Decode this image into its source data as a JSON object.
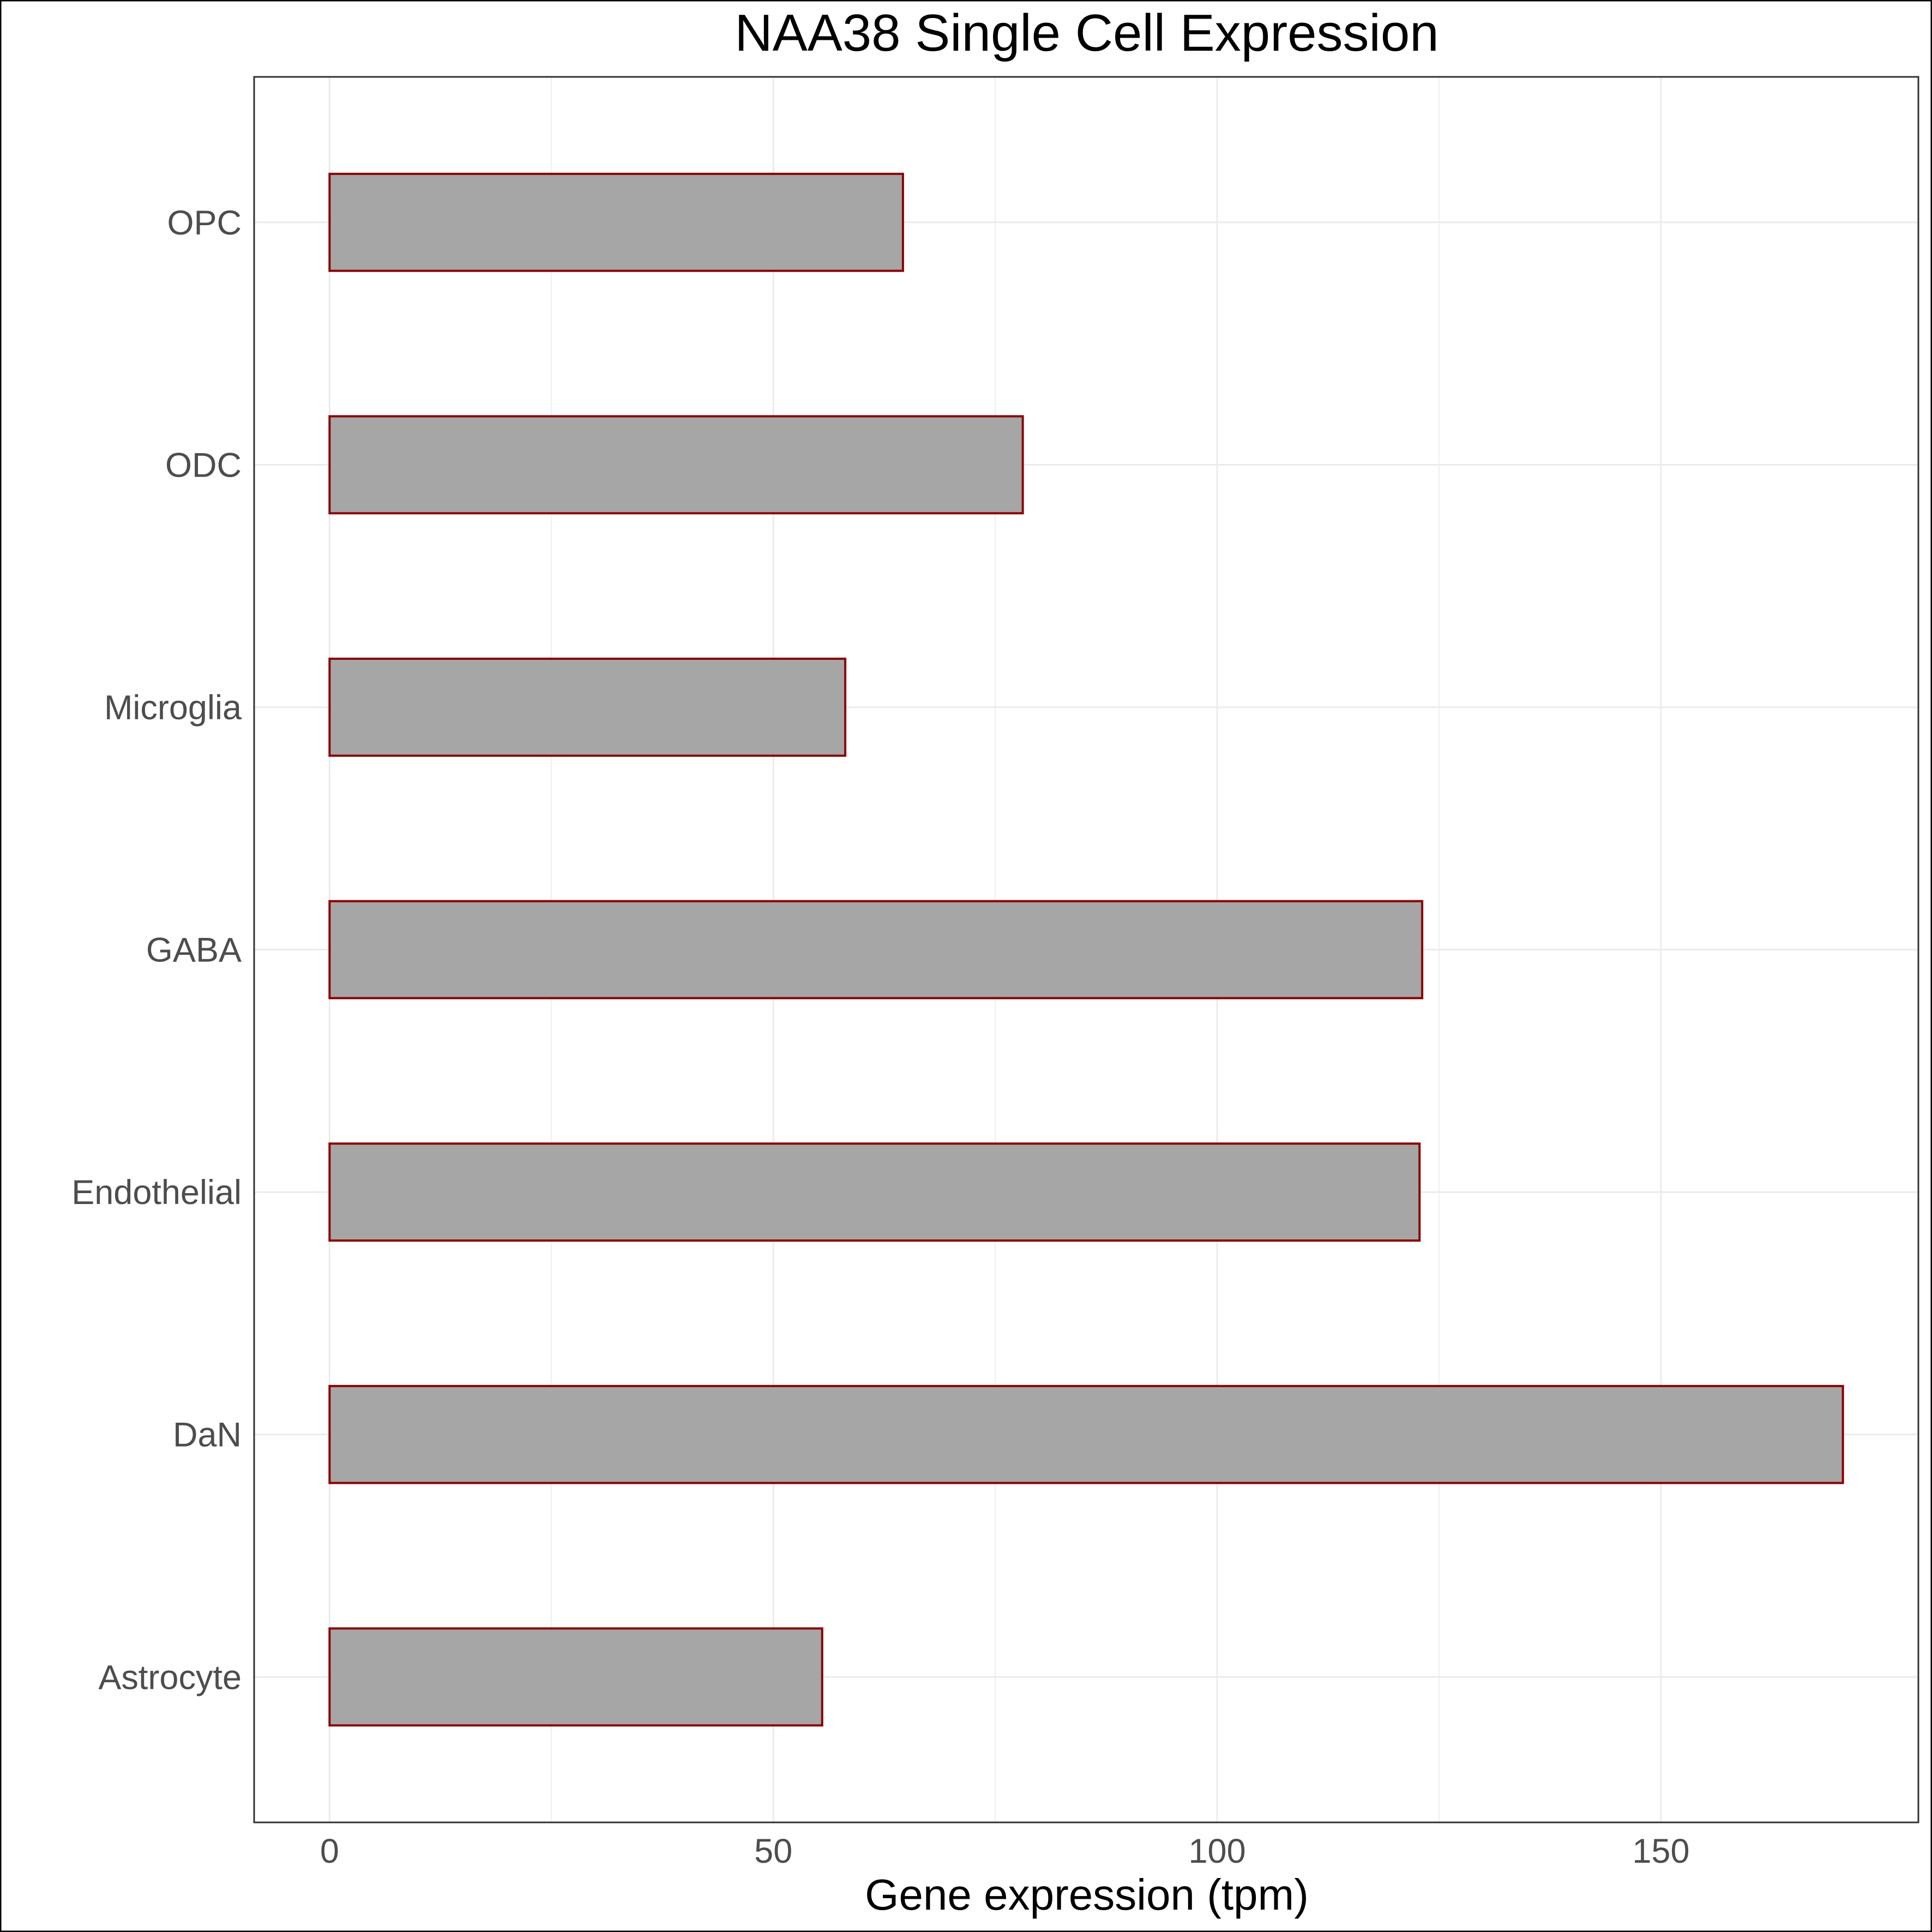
{
  "chart_data": {
    "type": "bar",
    "orientation": "horizontal",
    "title": "NAA38 Single Cell Expression",
    "xlabel": "Gene expression (tpm)",
    "ylabel": "",
    "categories": [
      "Astrocyte",
      "DaN",
      "Endothelial",
      "GABA",
      "Microglia",
      "ODC",
      "OPC"
    ],
    "values": [
      55.5,
      170.5,
      122.8,
      123.1,
      58.1,
      78.1,
      64.6
    ],
    "xlim": [
      -8.5,
      179
    ],
    "xticks": [
      0,
      50,
      100,
      150
    ],
    "grid": true,
    "legend": "none",
    "colors": {
      "bar_fill": "#a6a6a6",
      "bar_stroke": "#8b0000",
      "grid": "#ebebeb",
      "panel_border": "#333333"
    }
  }
}
